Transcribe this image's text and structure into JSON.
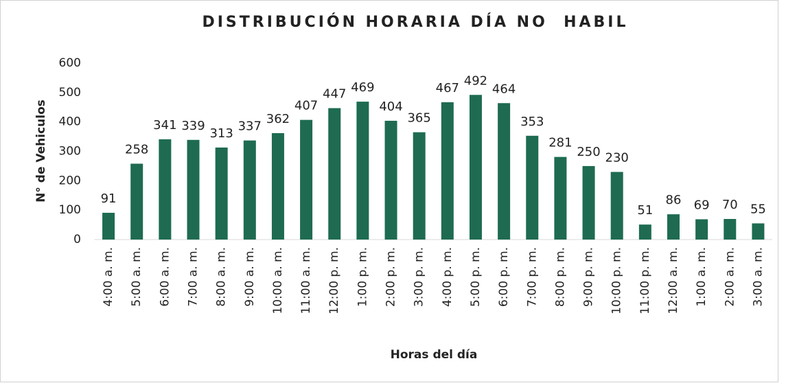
{
  "chart_data": {
    "type": "bar",
    "title": "DISTRIBUCIÓN HORARIA DÍA NO  HABIL",
    "x_label": "Horas del día",
    "y_label": "N° de Vehiculos",
    "categories": [
      "4:00 a. m.",
      "5:00 a. m.",
      "6:00 a. m.",
      "7:00 a. m.",
      "8:00 a. m.",
      "9:00 a. m.",
      "10:00 a. m.",
      "11:00 a. m.",
      "12:00 p. m.",
      "1:00 p. m.",
      "2:00 p. m.",
      "3:00 p. m.",
      "4:00 p. m.",
      "5:00 p. m.",
      "6:00 p. m.",
      "7:00 p. m.",
      "8:00 p. m.",
      "9:00 p. m.",
      "10:00 p. m.",
      "11:00 p. m.",
      "12:00 a. m.",
      "1:00 a. m.",
      "2:00 a. m.",
      "3:00 a. m."
    ],
    "values": [
      91,
      258,
      341,
      339,
      313,
      337,
      362,
      407,
      447,
      469,
      404,
      365,
      467,
      492,
      464,
      353,
      281,
      250,
      230,
      51,
      86,
      69,
      70,
      55
    ],
    "color": "#1e6b52",
    "ylim": [
      0,
      600
    ],
    "yticks": [
      0,
      100,
      200,
      300,
      400,
      500,
      600
    ],
    "grid": false
  }
}
